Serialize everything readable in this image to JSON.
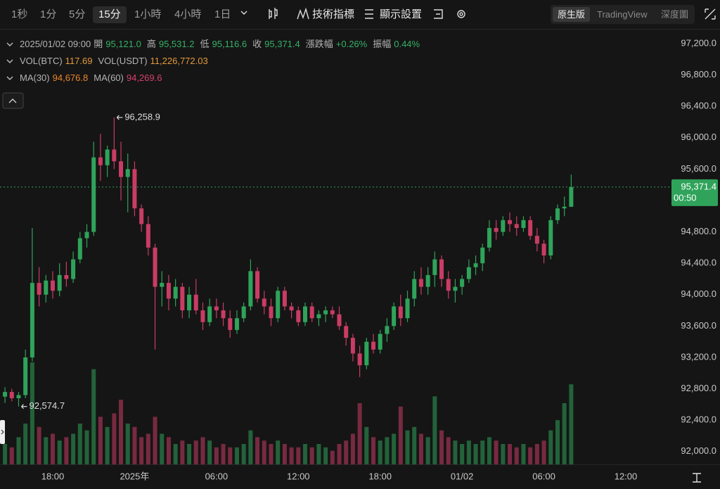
{
  "toolbar": {
    "intervals": [
      "1秒",
      "1分",
      "5分",
      "15分",
      "1小時",
      "4小時",
      "1日"
    ],
    "active_interval": "15分",
    "indicators": "技術指標",
    "display_settings": "顯示設置",
    "views": [
      "原生版",
      "TradingView",
      "深度圖"
    ],
    "active_view": "原生版"
  },
  "legend": {
    "time": "2025/01/02 09:00",
    "ohlc": [
      {
        "label": "開",
        "value": "95,121.0"
      },
      {
        "label": "高",
        "value": "95,531.2"
      },
      {
        "label": "低",
        "value": "95,116.6"
      },
      {
        "label": "收",
        "value": "95,371.4"
      },
      {
        "label": "漲跌幅",
        "value": "+0.26%"
      },
      {
        "label": "振幅",
        "value": "0.44%"
      }
    ],
    "volumes": [
      {
        "label": "VOL(BTC)",
        "value": "117.69"
      },
      {
        "label": "VOL(USDT)",
        "value": "11,226,772.03"
      }
    ],
    "mas": [
      {
        "label": "MA(30)",
        "value": "94,676.8",
        "color": "#e8862a"
      },
      {
        "label": "MA(60)",
        "value": "94,269.6",
        "color": "#d6406e"
      }
    ]
  },
  "chart_data": {
    "type": "candlestick",
    "up_color": "#2fa35a",
    "down_color": "#c93c64",
    "grid": false,
    "open": [
      92700,
      92760,
      92680,
      92720,
      93200,
      94150,
      94000,
      94180,
      94050,
      94250,
      94200,
      94450,
      94720,
      94800,
      95750,
      95650,
      95850,
      95700,
      95500,
      95600,
      95100,
      94900,
      94600,
      94100,
      94150,
      93950,
      94100,
      93800,
      94000,
      93800,
      93650,
      93850,
      93800,
      93700,
      93550,
      93700,
      93850,
      94300,
      93950,
      93850,
      93700,
      94050,
      93850,
      93800,
      93650,
      93850,
      93700,
      93750,
      93800,
      93750,
      93600,
      93450,
      93250,
      93100,
      93400,
      93300,
      93500,
      93600,
      93850,
      93700,
      93950,
      94200,
      94100,
      94250,
      94450,
      94200,
      94050,
      94100,
      94200,
      94350,
      94400,
      94600,
      94850,
      94800,
      94950,
      94900,
      94850,
      94950,
      94750,
      94650,
      94500,
      94950,
      95100,
      95121.0
    ],
    "high": [
      92820,
      92800,
      92760,
      93300,
      94850,
      94350,
      94250,
      94300,
      94400,
      94420,
      94550,
      94800,
      94900,
      95950,
      96050,
      95900,
      96258.9,
      95950,
      95800,
      95700,
      95150,
      95000,
      94650,
      94300,
      94250,
      94200,
      94150,
      94100,
      94200,
      93900,
      93950,
      93950,
      93900,
      93800,
      93800,
      93900,
      94450,
      94350,
      94050,
      93950,
      94100,
      94100,
      93900,
      93850,
      93900,
      93900,
      93800,
      93850,
      93850,
      93850,
      93650,
      93500,
      93350,
      93450,
      93500,
      93550,
      93700,
      93900,
      94000,
      94050,
      94300,
      94350,
      94350,
      94550,
      94500,
      94300,
      94200,
      94250,
      94450,
      94500,
      94650,
      94950,
      94950,
      95000,
      95050,
      95000,
      95000,
      95000,
      94850,
      94700,
      95000,
      95150,
      95250,
      95531.2
    ],
    "low": [
      92620,
      92640,
      92574.7,
      92680,
      93150,
      93850,
      93900,
      93950,
      93980,
      94100,
      94150,
      94400,
      94600,
      94750,
      95450,
      95500,
      95600,
      95200,
      95050,
      95000,
      94800,
      94500,
      93300,
      93850,
      93800,
      93850,
      93700,
      93700,
      93750,
      93550,
      93600,
      93700,
      93600,
      93450,
      93500,
      93650,
      93800,
      93900,
      93750,
      93600,
      93650,
      93800,
      93700,
      93600,
      93600,
      93650,
      93600,
      93650,
      93700,
      93550,
      93350,
      93150,
      92950,
      93050,
      93250,
      93250,
      93400,
      93550,
      93600,
      93650,
      93850,
      94000,
      94000,
      94100,
      94100,
      93950,
      93900,
      94000,
      94150,
      94250,
      94300,
      94550,
      94700,
      94750,
      94800,
      94750,
      94800,
      94700,
      94550,
      94400,
      94450,
      94900,
      95000,
      95116.6
    ],
    "close": [
      92760,
      92680,
      92720,
      93200,
      94150,
      94000,
      94180,
      94050,
      94250,
      94200,
      94450,
      94720,
      94800,
      95750,
      95650,
      95850,
      95700,
      95500,
      95600,
      95100,
      94900,
      94600,
      94100,
      94150,
      93950,
      94100,
      93800,
      94000,
      93800,
      93650,
      93850,
      93800,
      93700,
      93550,
      93700,
      93850,
      94300,
      93950,
      93850,
      93700,
      94050,
      93850,
      93800,
      93650,
      93850,
      93700,
      93750,
      93800,
      93750,
      93600,
      93450,
      93250,
      93100,
      93400,
      93300,
      93500,
      93600,
      93850,
      93700,
      93950,
      94200,
      94100,
      94250,
      94450,
      94200,
      94050,
      94100,
      94200,
      94350,
      94400,
      94600,
      94850,
      94800,
      94950,
      94900,
      94850,
      94950,
      94750,
      94650,
      94500,
      94950,
      95100,
      95121.0,
      95371.4
    ],
    "volume": [
      30,
      25,
      40,
      60,
      150,
      55,
      40,
      45,
      35,
      40,
      45,
      60,
      50,
      140,
      70,
      55,
      75,
      95,
      60,
      55,
      40,
      45,
      70,
      45,
      40,
      30,
      35,
      30,
      35,
      40,
      35,
      25,
      30,
      25,
      25,
      30,
      50,
      40,
      35,
      30,
      35,
      30,
      25,
      25,
      30,
      25,
      30,
      25,
      20,
      30,
      35,
      45,
      90,
      55,
      40,
      35,
      40,
      45,
      85,
      50,
      55,
      45,
      40,
      100,
      50,
      40,
      35,
      30,
      35,
      30,
      35,
      40,
      35,
      30,
      30,
      25,
      30,
      25,
      30,
      35,
      50,
      65,
      90,
      117.69
    ],
    "xlim": [
      -0.73,
      97.7
    ],
    "xticks": [
      {
        "value": 7,
        "label": "18:00"
      },
      {
        "value": 19,
        "label": "2025年"
      },
      {
        "value": 31,
        "label": "06:00"
      },
      {
        "value": 43,
        "label": "12:00"
      },
      {
        "value": 55,
        "label": "18:00"
      },
      {
        "value": 67,
        "label": "01/02"
      },
      {
        "value": 79,
        "label": "06:00"
      },
      {
        "value": 91,
        "label": "12:00"
      }
    ],
    "ylim": [
      91836.8,
      97379.4
    ],
    "yticks": [
      {
        "value": 97200,
        "label": "97,200.0"
      },
      {
        "value": 96800,
        "label": "96,800.0"
      },
      {
        "value": 96400,
        "label": "96,400.0"
      },
      {
        "value": 96000,
        "label": "96,000.0"
      },
      {
        "value": 95600,
        "label": "95,600.0"
      },
      {
        "value": 95200,
        "label": "95,200.0"
      },
      {
        "value": 94800,
        "label": "94,800.0"
      },
      {
        "value": 94400,
        "label": "94,400.0"
      },
      {
        "value": 94000,
        "label": "94,000.0"
      },
      {
        "value": 93600,
        "label": "93,600.0"
      },
      {
        "value": 93200,
        "label": "93,200.0"
      },
      {
        "value": 92800,
        "label": "92,800.0"
      },
      {
        "value": 92400,
        "label": "92,400.0"
      },
      {
        "value": 92000,
        "label": "92,000.0"
      }
    ],
    "last_price": {
      "value": 95371.4,
      "label": "95,371.4"
    },
    "countdown": "00:50",
    "annotations": [
      {
        "value": 96258.9,
        "label": "96,258.9"
      },
      {
        "value": 92574.7,
        "label": "92,574.7"
      }
    ]
  }
}
